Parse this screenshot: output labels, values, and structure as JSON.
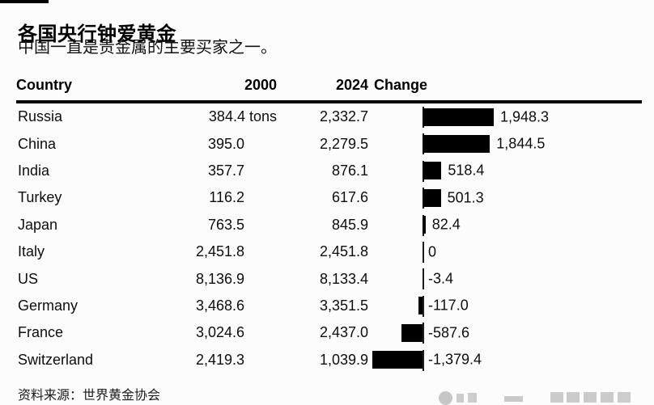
{
  "header": {
    "title": "各国央行钟爱黄金",
    "subtitle": "中国一直是贵金属的主要买家之一。"
  },
  "table": {
    "columns": {
      "country": "Country",
      "y2000": "2000",
      "y2024": "2024",
      "change": "Change"
    }
  },
  "rows": [
    {
      "country": "Russia",
      "v2000": "384.4",
      "v2000_suffix": " tons",
      "v2024": "2,332.7",
      "change": 1948.3,
      "change_label": "1,948.3"
    },
    {
      "country": "China",
      "v2000": "395.0",
      "v2000_suffix": "",
      "v2024": "2,279.5",
      "change": 1844.5,
      "change_label": "1,844.5"
    },
    {
      "country": "India",
      "v2000": "357.7",
      "v2000_suffix": "",
      "v2024": "876.1",
      "change": 518.4,
      "change_label": "518.4"
    },
    {
      "country": "Turkey",
      "v2000": "116.2",
      "v2000_suffix": "",
      "v2024": "617.6",
      "change": 501.3,
      "change_label": "501.3"
    },
    {
      "country": "Japan",
      "v2000": "763.5",
      "v2000_suffix": "",
      "v2024": "845.9",
      "change": 82.4,
      "change_label": "82.4"
    },
    {
      "country": "Italy",
      "v2000": "2,451.8",
      "v2000_suffix": "",
      "v2024": "2,451.8",
      "change": 0,
      "change_label": "0"
    },
    {
      "country": "US",
      "v2000": "8,136.9",
      "v2000_suffix": "",
      "v2024": "8,133.4",
      "change": -3.4,
      "change_label": "-3.4"
    },
    {
      "country": "Germany",
      "v2000": "3,468.6",
      "v2000_suffix": "",
      "v2024": "3,351.5",
      "change": -117.0,
      "change_label": "-117.0"
    },
    {
      "country": "France",
      "v2000": "3,024.6",
      "v2000_suffix": "",
      "v2024": "2,437.0",
      "change": -587.6,
      "change_label": "-587.6"
    },
    {
      "country": "Switzerland",
      "v2000": "2,419.3",
      "v2000_suffix": "",
      "v2024": "1,039.9",
      "change": -1379.4,
      "change_label": "-1,379.4"
    }
  ],
  "footer": {
    "source": "资料来源：世界黄金协会"
  },
  "colors": {
    "bar": "#000000",
    "text": "#0d0d0d",
    "axis": "#1c1c1c",
    "background": "#fcfcfc"
  },
  "chart_data": {
    "type": "bar",
    "orientation": "horizontal",
    "title": "各国央行钟爱黄金",
    "subtitle": "中国一直是贵金属的主要买家之一。",
    "unit": "tons",
    "categories": [
      "Russia",
      "China",
      "India",
      "Turkey",
      "Japan",
      "Italy",
      "US",
      "Germany",
      "France",
      "Switzerland"
    ],
    "series": [
      {
        "name": "2000",
        "values": [
          384.4,
          395.0,
          357.7,
          116.2,
          763.5,
          2451.8,
          8136.9,
          3468.6,
          3024.6,
          2419.3
        ]
      },
      {
        "name": "2024",
        "values": [
          2332.7,
          2279.5,
          876.1,
          617.6,
          845.9,
          2451.8,
          8133.4,
          3351.5,
          2437.0,
          1039.9
        ]
      },
      {
        "name": "Change",
        "values": [
          1948.3,
          1844.5,
          518.4,
          501.3,
          82.4,
          0,
          -3.4,
          -117.0,
          -587.6,
          -1379.4
        ]
      }
    ],
    "bar_series_plotted": "Change",
    "xlim": [
      -1948.3,
      1948.3
    ],
    "grid": false,
    "legend": "none",
    "source": "资料来源：世界黄金协会"
  }
}
